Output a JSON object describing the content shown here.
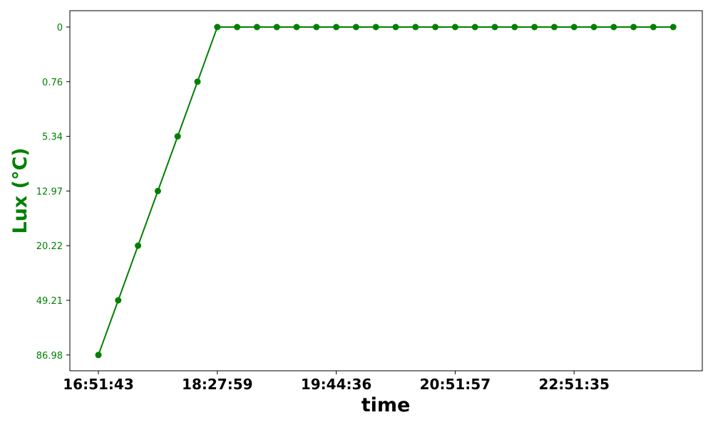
{
  "chart_data": {
    "type": "line",
    "xlabel": "time",
    "ylabel": "Lux (°C)",
    "y_axis_inverted_categorical": true,
    "yticks": [
      "0",
      "0.76",
      "5.34",
      "12.97",
      "20.22",
      "49.21",
      "86.98"
    ],
    "xticks": [
      {
        "label": "16:51:43",
        "index": 0
      },
      {
        "label": "18:27:59",
        "index": 6
      },
      {
        "label": "19:44:36",
        "index": 12
      },
      {
        "label": "20:51:57",
        "index": 18
      },
      {
        "label": "22:51:35",
        "index": 24
      }
    ],
    "series": [
      {
        "values": [
          "86.98",
          "49.21",
          "20.22",
          "12.97",
          "5.34",
          "0.76",
          "0",
          "0",
          "0",
          "0",
          "0",
          "0",
          "0",
          "0",
          "0",
          "0",
          "0",
          "0",
          "0",
          "0",
          "0",
          "0",
          "0",
          "0",
          "0",
          "0",
          "0",
          "0",
          "0",
          "0"
        ]
      }
    ],
    "point_count": 30,
    "grid": false,
    "colors": {
      "line": "#008000",
      "ytick_text": "#008000",
      "ylabel_text": "#008000",
      "xtick_text": "#000000",
      "xlabel_text": "#000000",
      "frame": "#000000"
    }
  }
}
